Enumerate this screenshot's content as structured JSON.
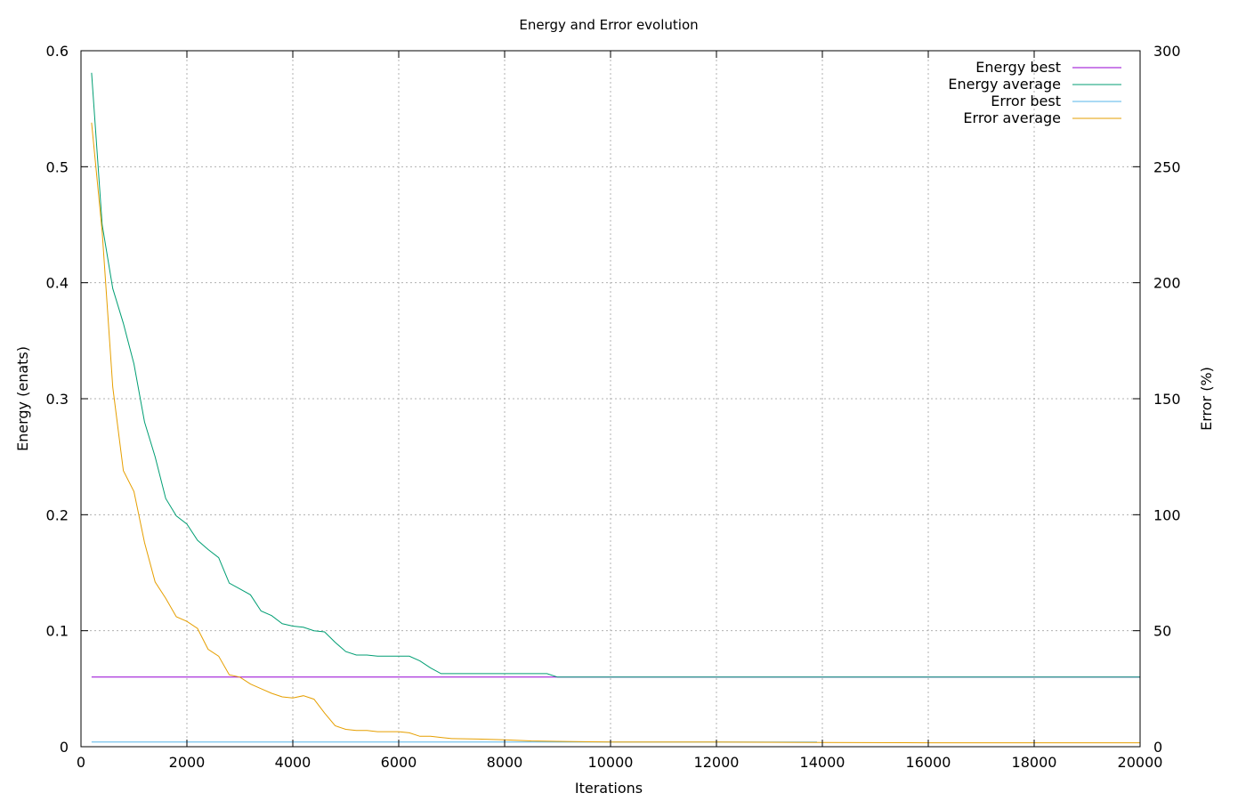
{
  "chart_data": {
    "type": "line",
    "title": "Energy and Error evolution",
    "xlabel": "Iterations",
    "ylabel": "Energy (enats)",
    "y2label": "Error (%)",
    "xlim": [
      0,
      20000
    ],
    "ylim": [
      0,
      0.6
    ],
    "y2lim": [
      0,
      300
    ],
    "xticks": [
      "0",
      "2000",
      "4000",
      "6000",
      "8000",
      "10000",
      "12000",
      "14000",
      "16000",
      "18000",
      "20000"
    ],
    "yticks": [
      "0",
      "0.1",
      "0.2",
      "0.3",
      "0.4",
      "0.5",
      "0.6"
    ],
    "y2ticks": [
      "0",
      "50",
      "100",
      "150",
      "200",
      "250",
      "300"
    ],
    "grid": true,
    "legend_position": "top-right",
    "series": [
      {
        "name": "Energy best",
        "axis": "y",
        "color": "#9400d3",
        "x": [
          200,
          20000
        ],
        "y": [
          0.06,
          0.06
        ]
      },
      {
        "name": "Energy average",
        "axis": "y",
        "color": "#009e73",
        "x": [
          200,
          400,
          600,
          800,
          1000,
          1200,
          1400,
          1600,
          1800,
          2000,
          2200,
          2400,
          2600,
          2800,
          3000,
          3200,
          3400,
          3600,
          3800,
          4000,
          4200,
          4400,
          4600,
          4800,
          5000,
          5200,
          5400,
          5600,
          5800,
          6000,
          6200,
          6400,
          6600,
          6800,
          7000,
          7500,
          8000,
          8500,
          8800,
          9000,
          20000
        ],
        "y": [
          0.581,
          0.45,
          0.395,
          0.365,
          0.33,
          0.28,
          0.25,
          0.214,
          0.199,
          0.192,
          0.178,
          0.17,
          0.163,
          0.141,
          0.136,
          0.131,
          0.117,
          0.113,
          0.106,
          0.104,
          0.103,
          0.1,
          0.099,
          0.09,
          0.082,
          0.079,
          0.079,
          0.078,
          0.078,
          0.078,
          0.078,
          0.074,
          0.068,
          0.063,
          0.063,
          0.063,
          0.063,
          0.063,
          0.063,
          0.06,
          0.06
        ]
      },
      {
        "name": "Error best",
        "axis": "y2",
        "color": "#56b4e9",
        "x": [
          200,
          13900
        ],
        "y": [
          2,
          2
        ]
      },
      {
        "name": "Error average",
        "axis": "y2",
        "color": "#e69f00",
        "x": [
          200,
          400,
          600,
          800,
          1000,
          1200,
          1400,
          1600,
          1800,
          2000,
          2200,
          2400,
          2600,
          2800,
          3000,
          3200,
          3400,
          3600,
          3800,
          4000,
          4200,
          4400,
          4600,
          4800,
          5000,
          5200,
          5400,
          5600,
          5800,
          6000,
          6200,
          6400,
          6600,
          6800,
          7000,
          7500,
          8000,
          8500,
          9000,
          10000,
          12000,
          14000,
          16000,
          18000,
          20000
        ],
        "y": [
          269,
          222,
          155,
          119,
          110,
          88,
          71,
          64,
          56,
          54,
          51,
          42,
          39,
          31,
          30,
          27,
          25,
          23,
          21.5,
          21,
          22,
          20.5,
          14.5,
          9,
          7.5,
          7,
          7,
          6.5,
          6.5,
          6.5,
          6,
          4.5,
          4.5,
          4,
          3.5,
          3.3,
          3,
          2.5,
          2.3,
          2,
          2,
          1.8,
          1.7,
          1.7,
          1.7
        ]
      }
    ]
  }
}
